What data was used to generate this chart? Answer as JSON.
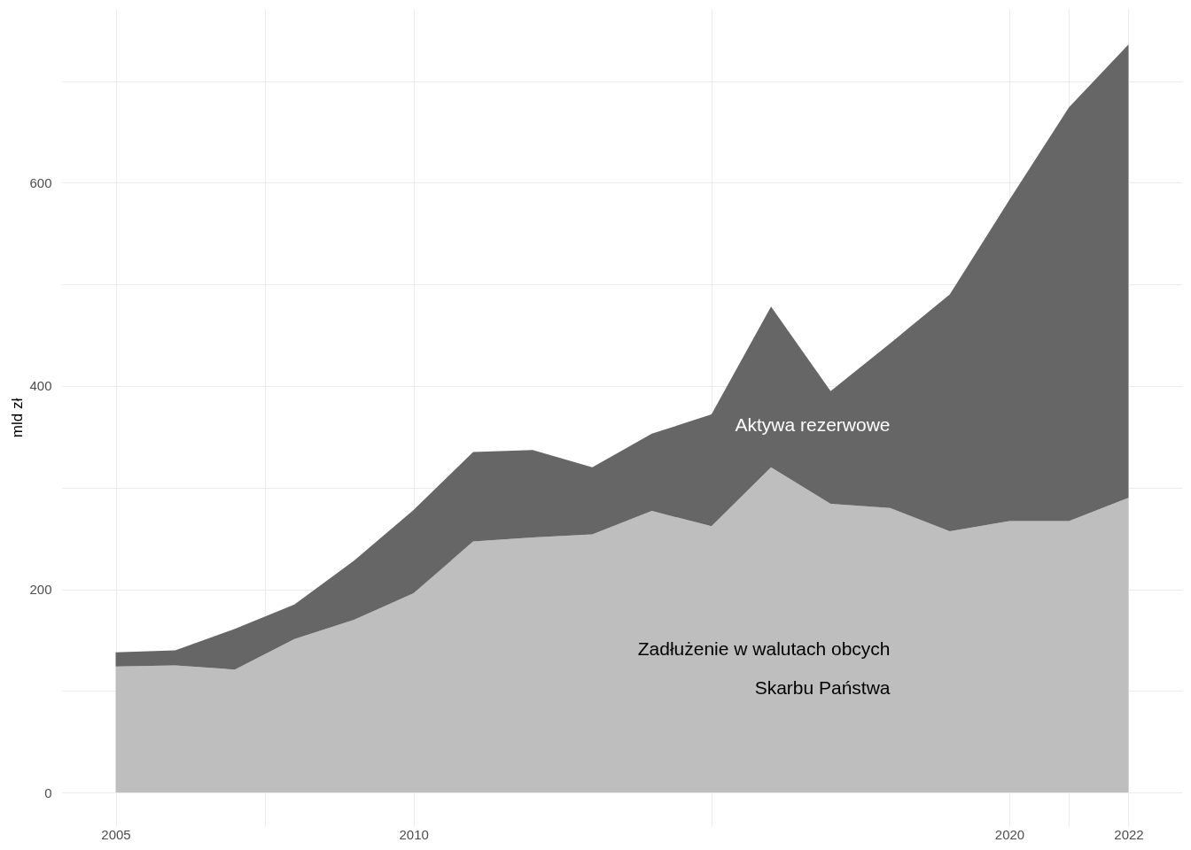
{
  "chart_data": {
    "type": "area",
    "stacked": true,
    "ylabel": "mld zł",
    "x": [
      2005,
      2006,
      2007,
      2008,
      2009,
      2010,
      2011,
      2012,
      2013,
      2014,
      2015,
      2016,
      2017,
      2018,
      2019,
      2020,
      2021,
      2022
    ],
    "series": [
      {
        "name": "Zadłużenie w walutach obcych\nSkarbu Państwa",
        "color": "#bebebe",
        "values": [
          124,
          125,
          121,
          151,
          170,
          196,
          247,
          251,
          254,
          277,
          262,
          320,
          284,
          280,
          257,
          267,
          267,
          290
        ]
      },
      {
        "name": "Aktywa rezerwowe",
        "color": "#666666",
        "values": [
          14,
          15,
          40,
          34,
          58,
          82,
          88,
          86,
          66,
          76,
          110,
          158,
          111,
          162,
          233,
          316,
          407,
          446
        ]
      }
    ],
    "xlim": [
      2004.1,
      2022.9
    ],
    "xticks": [
      2005,
      {
        "value": 2007.5,
        "label": null
      },
      2010,
      {
        "value": 2015,
        "label": null
      },
      2020,
      {
        "value": 2021,
        "label": null
      },
      2022
    ],
    "ylim": [
      -33,
      771
    ],
    "yticks": [
      0,
      {
        "value": 100,
        "label": null
      },
      200,
      {
        "value": 300,
        "label": null
      },
      400,
      {
        "value": 500,
        "label": null
      },
      600,
      {
        "value": 700,
        "label": null
      }
    ],
    "grid": true
  }
}
